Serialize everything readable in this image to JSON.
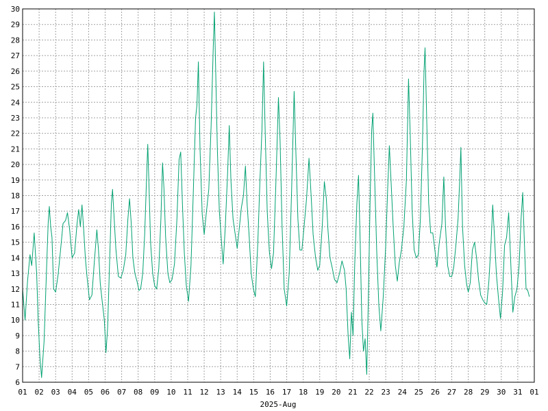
{
  "chart_data": {
    "type": "line",
    "title": "",
    "xlabel": "2025-Aug",
    "ylabel": "",
    "ylim": [
      6,
      30
    ],
    "y_ticks": [
      6,
      7,
      8,
      9,
      10,
      11,
      12,
      13,
      14,
      15,
      16,
      17,
      18,
      19,
      20,
      21,
      22,
      23,
      24,
      25,
      26,
      27,
      28,
      29,
      30
    ],
    "x_tick_labels": [
      "01",
      "02",
      "03",
      "04",
      "05",
      "06",
      "07",
      "08",
      "09",
      "10",
      "11",
      "12",
      "13",
      "14",
      "15",
      "16",
      "17",
      "18",
      "19",
      "20",
      "21",
      "22",
      "23",
      "24",
      "25",
      "26",
      "27",
      "28",
      "29",
      "30",
      "31",
      "01"
    ],
    "grid": true,
    "series_color": "#00a070",
    "series": [
      {
        "x_unit": "day of month",
        "points": [
          [
            1.0,
            12.0
          ],
          [
            1.15,
            10.0
          ],
          [
            1.3,
            12.5
          ],
          [
            1.45,
            14.2
          ],
          [
            1.55,
            13.5
          ],
          [
            1.7,
            15.6
          ],
          [
            1.85,
            13.0
          ],
          [
            1.95,
            9.8
          ],
          [
            2.05,
            7.6
          ],
          [
            2.15,
            6.3
          ],
          [
            2.3,
            8.6
          ],
          [
            2.45,
            13.2
          ],
          [
            2.55,
            16.2
          ],
          [
            2.62,
            17.3
          ],
          [
            2.7,
            16.0
          ],
          [
            2.78,
            15.3
          ],
          [
            2.88,
            12.0
          ],
          [
            3.0,
            11.8
          ],
          [
            3.15,
            12.9
          ],
          [
            3.3,
            14.5
          ],
          [
            3.45,
            16.2
          ],
          [
            3.6,
            16.4
          ],
          [
            3.72,
            16.9
          ],
          [
            3.85,
            15.8
          ],
          [
            4.0,
            14.0
          ],
          [
            4.15,
            14.3
          ],
          [
            4.3,
            16.2
          ],
          [
            4.4,
            17.1
          ],
          [
            4.5,
            16.0
          ],
          [
            4.6,
            17.4
          ],
          [
            4.7,
            15.8
          ],
          [
            4.8,
            14.0
          ],
          [
            4.9,
            12.8
          ],
          [
            5.05,
            11.3
          ],
          [
            5.2,
            11.6
          ],
          [
            5.35,
            13.8
          ],
          [
            5.5,
            15.8
          ],
          [
            5.6,
            14.5
          ],
          [
            5.7,
            12.4
          ],
          [
            5.8,
            11.4
          ],
          [
            5.95,
            10.0
          ],
          [
            6.05,
            7.9
          ],
          [
            6.15,
            9.5
          ],
          [
            6.28,
            14.0
          ],
          [
            6.38,
            17.5
          ],
          [
            6.45,
            18.4
          ],
          [
            6.55,
            16.5
          ],
          [
            6.65,
            14.6
          ],
          [
            6.8,
            12.8
          ],
          [
            6.95,
            12.7
          ],
          [
            7.1,
            13.2
          ],
          [
            7.25,
            14.2
          ],
          [
            7.38,
            16.5
          ],
          [
            7.48,
            17.8
          ],
          [
            7.58,
            16.2
          ],
          [
            7.68,
            14.0
          ],
          [
            7.8,
            13.0
          ],
          [
            7.95,
            12.4
          ],
          [
            8.05,
            11.9
          ],
          [
            8.15,
            12.0
          ],
          [
            8.28,
            13.0
          ],
          [
            8.4,
            15.6
          ],
          [
            8.5,
            18.8
          ],
          [
            8.58,
            21.3
          ],
          [
            8.66,
            18.5
          ],
          [
            8.75,
            15.0
          ],
          [
            8.88,
            13.0
          ],
          [
            9.0,
            12.2
          ],
          [
            9.12,
            12.0
          ],
          [
            9.25,
            13.3
          ],
          [
            9.38,
            16.5
          ],
          [
            9.48,
            20.1
          ],
          [
            9.56,
            18.5
          ],
          [
            9.66,
            15.4
          ],
          [
            9.8,
            13.0
          ],
          [
            9.92,
            12.4
          ],
          [
            10.05,
            12.6
          ],
          [
            10.2,
            13.6
          ],
          [
            10.35,
            16.5
          ],
          [
            10.48,
            20.3
          ],
          [
            10.58,
            20.8
          ],
          [
            10.68,
            17.5
          ],
          [
            10.8,
            14.3
          ],
          [
            10.92,
            12.2
          ],
          [
            11.05,
            11.2
          ],
          [
            11.2,
            13.5
          ],
          [
            11.35,
            18.5
          ],
          [
            11.48,
            23.0
          ],
          [
            11.56,
            23.8
          ],
          [
            11.65,
            26.6
          ],
          [
            11.75,
            21.0
          ],
          [
            11.88,
            16.8
          ],
          [
            12.0,
            15.5
          ],
          [
            12.12,
            16.8
          ],
          [
            12.28,
            18.4
          ],
          [
            12.42,
            22.5
          ],
          [
            12.55,
            27.5
          ],
          [
            12.62,
            29.8
          ],
          [
            12.7,
            26.0
          ],
          [
            12.8,
            21.0
          ],
          [
            12.92,
            17.0
          ],
          [
            13.05,
            15.0
          ],
          [
            13.15,
            13.6
          ],
          [
            13.28,
            16.0
          ],
          [
            13.42,
            19.5
          ],
          [
            13.52,
            22.5
          ],
          [
            13.62,
            19.0
          ],
          [
            13.75,
            16.5
          ],
          [
            13.88,
            15.5
          ],
          [
            14.0,
            14.6
          ],
          [
            14.12,
            15.8
          ],
          [
            14.25,
            17.2
          ],
          [
            14.38,
            18.0
          ],
          [
            14.5,
            19.9
          ],
          [
            14.6,
            17.5
          ],
          [
            14.72,
            15.5
          ],
          [
            14.85,
            13.0
          ],
          [
            14.98,
            12.0
          ],
          [
            15.1,
            11.5
          ],
          [
            15.25,
            15.0
          ],
          [
            15.38,
            19.0
          ],
          [
            15.5,
            22.2
          ],
          [
            15.6,
            26.6
          ],
          [
            15.7,
            22.0
          ],
          [
            15.82,
            17.0
          ],
          [
            15.95,
            14.4
          ],
          [
            16.08,
            13.3
          ],
          [
            16.2,
            14.3
          ],
          [
            16.35,
            19.0
          ],
          [
            16.5,
            24.3
          ],
          [
            16.6,
            21.5
          ],
          [
            16.72,
            16.0
          ],
          [
            16.85,
            12.0
          ],
          [
            17.0,
            10.9
          ],
          [
            17.15,
            13.0
          ],
          [
            17.3,
            18.5
          ],
          [
            17.45,
            24.7
          ],
          [
            17.55,
            21.0
          ],
          [
            17.68,
            16.5
          ],
          [
            17.8,
            14.5
          ],
          [
            17.92,
            14.5
          ],
          [
            18.05,
            16.0
          ],
          [
            18.2,
            17.8
          ],
          [
            18.35,
            20.4
          ],
          [
            18.48,
            18.0
          ],
          [
            18.6,
            15.5
          ],
          [
            18.75,
            14.0
          ],
          [
            18.88,
            13.2
          ],
          [
            19.0,
            13.5
          ],
          [
            19.15,
            16.0
          ],
          [
            19.28,
            18.9
          ],
          [
            19.4,
            17.8
          ],
          [
            19.5,
            15.8
          ],
          [
            19.62,
            14.0
          ],
          [
            19.75,
            13.4
          ],
          [
            19.9,
            12.6
          ],
          [
            20.05,
            12.4
          ],
          [
            20.2,
            13.0
          ],
          [
            20.35,
            13.8
          ],
          [
            20.5,
            13.2
          ],
          [
            20.6,
            12.0
          ],
          [
            20.72,
            9.0
          ],
          [
            20.82,
            7.5
          ],
          [
            20.92,
            10.5
          ],
          [
            21.02,
            9.0
          ],
          [
            21.12,
            13.5
          ],
          [
            21.25,
            17.5
          ],
          [
            21.35,
            19.3
          ],
          [
            21.45,
            15.0
          ],
          [
            21.55,
            10.0
          ],
          [
            21.65,
            8.0
          ],
          [
            21.75,
            8.8
          ],
          [
            21.85,
            6.5
          ],
          [
            21.95,
            11.5
          ],
          [
            22.05,
            17.5
          ],
          [
            22.15,
            22.2
          ],
          [
            22.22,
            23.3
          ],
          [
            22.32,
            19.5
          ],
          [
            22.45,
            14.5
          ],
          [
            22.58,
            11.0
          ],
          [
            22.7,
            9.3
          ],
          [
            22.85,
            11.5
          ],
          [
            23.0,
            14.8
          ],
          [
            23.12,
            18.5
          ],
          [
            23.22,
            21.2
          ],
          [
            23.32,
            19.0
          ],
          [
            23.45,
            16.0
          ],
          [
            23.58,
            13.5
          ],
          [
            23.7,
            12.5
          ],
          [
            23.82,
            13.7
          ],
          [
            23.95,
            14.5
          ],
          [
            24.1,
            16.0
          ],
          [
            24.25,
            19.0
          ],
          [
            24.38,
            25.5
          ],
          [
            24.48,
            22.0
          ],
          [
            24.6,
            17.0
          ],
          [
            24.72,
            14.5
          ],
          [
            24.85,
            14.0
          ],
          [
            24.98,
            14.2
          ],
          [
            25.1,
            16.5
          ],
          [
            25.22,
            21.0
          ],
          [
            25.32,
            26.0
          ],
          [
            25.38,
            27.5
          ],
          [
            25.48,
            23.0
          ],
          [
            25.6,
            17.5
          ],
          [
            25.72,
            15.6
          ],
          [
            25.85,
            15.6
          ],
          [
            26.0,
            14.3
          ],
          [
            26.1,
            13.4
          ],
          [
            26.25,
            15.0
          ],
          [
            26.4,
            16.2
          ],
          [
            26.52,
            19.2
          ],
          [
            26.62,
            16.0
          ],
          [
            26.75,
            13.5
          ],
          [
            26.88,
            12.8
          ],
          [
            27.0,
            12.8
          ],
          [
            27.12,
            13.4
          ],
          [
            27.25,
            14.8
          ],
          [
            27.38,
            16.5
          ],
          [
            27.48,
            19.0
          ],
          [
            27.55,
            21.1
          ],
          [
            27.65,
            16.0
          ],
          [
            27.78,
            13.5
          ],
          [
            27.9,
            12.3
          ],
          [
            28.0,
            11.8
          ],
          [
            28.12,
            12.4
          ],
          [
            28.25,
            14.5
          ],
          [
            28.38,
            15.0
          ],
          [
            28.5,
            14.0
          ],
          [
            28.62,
            12.6
          ],
          [
            28.75,
            11.6
          ],
          [
            28.88,
            11.3
          ],
          [
            29.0,
            11.1
          ],
          [
            29.12,
            11.0
          ],
          [
            29.25,
            12.5
          ],
          [
            29.38,
            15.0
          ],
          [
            29.48,
            17.4
          ],
          [
            29.58,
            15.5
          ],
          [
            29.7,
            13.0
          ],
          [
            29.82,
            11.5
          ],
          [
            29.95,
            10.1
          ],
          [
            30.08,
            11.8
          ],
          [
            30.2,
            14.8
          ],
          [
            30.32,
            15.3
          ],
          [
            30.45,
            16.9
          ],
          [
            30.58,
            13.5
          ],
          [
            30.7,
            10.5
          ],
          [
            30.82,
            11.5
          ],
          [
            30.95,
            12.0
          ],
          [
            31.08,
            13.5
          ],
          [
            31.2,
            16.5
          ],
          [
            31.3,
            18.2
          ],
          [
            31.4,
            15.0
          ],
          [
            31.5,
            12.0
          ],
          [
            31.6,
            11.9
          ],
          [
            31.7,
            11.5
          ]
        ]
      }
    ]
  }
}
